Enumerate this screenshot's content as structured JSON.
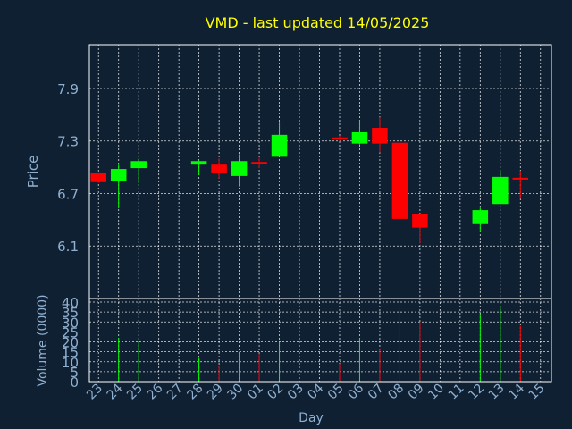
{
  "title": "VMD - last updated 14/05/2025",
  "chart_data": [
    {
      "type": "candlestick",
      "ylabel": "Price",
      "ylim": [
        5.95,
        7.35
      ],
      "yticks": [
        "6.1",
        "6.7",
        "7.3",
        "7.9"
      ],
      "ytick_values": [
        6.1,
        6.7,
        7.3,
        7.9
      ],
      "ylim_display": [
        5.5,
        8.4
      ],
      "grid": true,
      "up_color": "#00ff00",
      "down_color": "#ff0000",
      "candles": [
        {
          "x": "23",
          "open": 6.93,
          "high": 6.93,
          "low": 6.82,
          "close": 6.83
        },
        {
          "x": "24",
          "open": 6.84,
          "high": 7.03,
          "low": 6.53,
          "close": 6.98
        },
        {
          "x": "25",
          "open": 6.99,
          "high": 7.1,
          "low": 6.82,
          "close": 7.07
        },
        {
          "x": "28",
          "open": 7.03,
          "high": 7.08,
          "low": 6.91,
          "close": 7.07
        },
        {
          "x": "29",
          "open": 7.03,
          "high": 7.1,
          "low": 6.87,
          "close": 6.93
        },
        {
          "x": "30",
          "open": 6.9,
          "high": 7.15,
          "low": 6.78,
          "close": 7.07
        },
        {
          "x": "01",
          "open": 7.06,
          "high": 7.11,
          "low": 6.99,
          "close": 7.05
        },
        {
          "x": "02",
          "open": 7.12,
          "high": 7.51,
          "low": 7.12,
          "close": 7.37
        },
        {
          "x": "05",
          "open": 7.34,
          "high": 7.36,
          "low": 7.3,
          "close": 7.33
        },
        {
          "x": "06",
          "open": 7.27,
          "high": 7.54,
          "low": 7.26,
          "close": 7.4
        },
        {
          "x": "07",
          "open": 7.45,
          "high": 7.57,
          "low": 7.17,
          "close": 7.27
        },
        {
          "x": "08",
          "open": 7.28,
          "high": 7.28,
          "low": 6.41,
          "close": 6.41
        },
        {
          "x": "09",
          "open": 6.46,
          "high": 6.46,
          "low": 6.13,
          "close": 6.31
        },
        {
          "x": "12",
          "open": 6.35,
          "high": 6.54,
          "low": 6.26,
          "close": 6.51
        },
        {
          "x": "13",
          "open": 6.58,
          "high": 6.94,
          "low": 6.58,
          "close": 6.89
        },
        {
          "x": "14",
          "open": 6.88,
          "high": 6.96,
          "low": 6.64,
          "close": 6.86
        }
      ]
    },
    {
      "type": "bar",
      "ylabel": "Volume (0000)",
      "ylim": [
        0,
        40
      ],
      "yticks": [
        "0",
        "5",
        "10",
        "15",
        "20",
        "25",
        "30",
        "35",
        "40"
      ],
      "ytick_values": [
        0,
        5,
        10,
        15,
        20,
        25,
        30,
        35,
        40
      ],
      "xlabel": "Day",
      "categories": [
        "23",
        "24",
        "25",
        "26",
        "27",
        "28",
        "29",
        "30",
        "01",
        "02",
        "03",
        "04",
        "05",
        "06",
        "07",
        "08",
        "09",
        "10",
        "11",
        "12",
        "13",
        "14",
        "15"
      ],
      "values": [
        0,
        22,
        20,
        0,
        0,
        12,
        8,
        15,
        14,
        20,
        0,
        0,
        9,
        22,
        16,
        38,
        30,
        0,
        0,
        34,
        38,
        28,
        0
      ],
      "colors": [
        "none",
        "#00ff00",
        "#00ff00",
        "none",
        "none",
        "#00ff00",
        "#ff0000",
        "#00ff00",
        "#ff0000",
        "#00ff00",
        "none",
        "none",
        "#ff0000",
        "#00ff00",
        "#ff0000",
        "#ff0000",
        "#ff0000",
        "none",
        "none",
        "#00ff00",
        "#00ff00",
        "#ff0000",
        "none"
      ]
    }
  ]
}
